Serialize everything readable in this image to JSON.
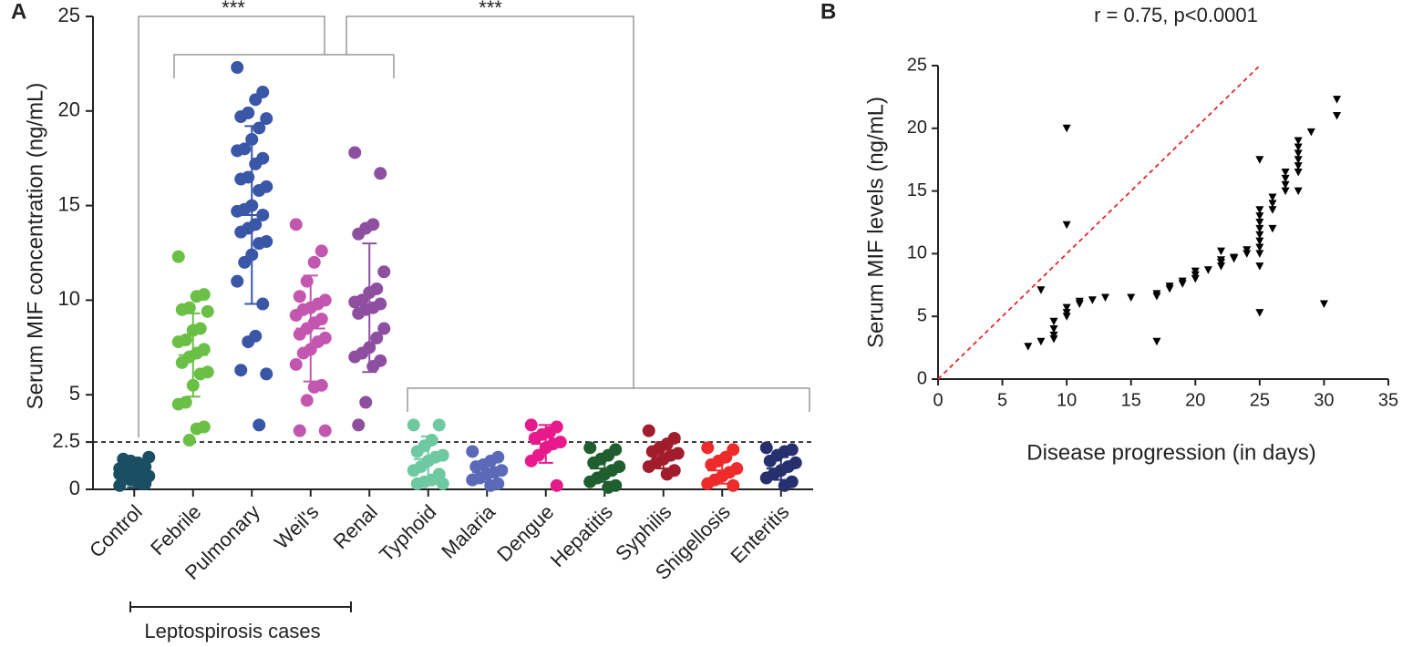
{
  "chart_data": [
    {
      "type": "strip",
      "panel": "A",
      "ylabel": "Serum MIF concentration (ng/mL)",
      "categories": [
        "Control",
        "Febrile",
        "Pulmonary",
        "Weil's",
        "Renal",
        "Typhoid",
        "Malaria",
        "Dengue",
        "Hepatitis",
        "Syphilis",
        "Shigellosis",
        "Enteritis"
      ],
      "colors": [
        "#1a4f63",
        "#6abf45",
        "#3a57a7",
        "#c357b0",
        "#8e4fa0",
        "#6fc9a0",
        "#5a6ab8",
        "#e8198b",
        "#1f5e2e",
        "#a11d2b",
        "#ee2a2a",
        "#27306e"
      ],
      "values": [
        [
          0.2,
          0.3,
          0.4,
          0.5,
          0.6,
          0.7,
          0.8,
          0.9,
          1.0,
          1.1,
          1.2,
          1.4,
          1.5,
          1.6,
          1.7,
          0.3,
          0.5,
          0.6,
          0.8,
          0.4
        ],
        [
          12.3,
          10.3,
          10.2,
          9.6,
          9.5,
          9.4,
          8.5,
          8.4,
          7.9,
          7.8,
          7.4,
          7.2,
          7.0,
          6.7,
          6.2,
          6.1,
          5.5,
          4.6,
          4.5,
          3.3,
          3.2,
          2.6
        ],
        [
          22.3,
          21,
          20.6,
          19.9,
          19.7,
          19.6,
          19.1,
          18.5,
          18,
          17.9,
          17.5,
          17.2,
          16.5,
          16.4,
          16,
          15.8,
          15,
          14.8,
          14.7,
          14.5,
          14,
          13.8,
          13.6,
          13.1,
          13,
          12.4,
          12,
          11,
          9.8,
          8.1,
          7.8,
          6.3,
          6.1,
          3.4
        ],
        [
          14,
          12.6,
          12,
          11,
          10.2,
          10,
          9.8,
          9.6,
          9.5,
          9.2,
          9,
          8.8,
          8.5,
          8.2,
          8,
          7.8,
          7.4,
          7.2,
          6.6,
          5.5,
          5.4,
          4.7,
          3.1,
          3.1
        ],
        [
          17.8,
          16.7,
          14,
          13.8,
          13.5,
          11.5,
          10.6,
          10.4,
          10,
          9.9,
          9.8,
          9.6,
          9.5,
          9.3,
          8.5,
          8,
          7.5,
          7.2,
          7,
          6.8,
          6.5,
          4.6,
          3.4
        ],
        [
          3.4,
          3.4,
          2.6,
          2.3,
          2.0,
          1.8,
          1.7,
          1.5,
          1.2,
          1.0,
          0.8,
          0.5,
          0.4,
          0.3,
          0.3
        ],
        [
          2.0,
          1.7,
          1.5,
          1.3,
          1.2,
          1.0,
          0.9,
          0.8,
          0.6,
          0.5,
          0.3,
          0.2
        ],
        [
          3.4,
          3.3,
          3.0,
          2.9,
          2.7,
          2.5,
          2.4,
          2.2,
          1.8,
          1.5,
          0.2
        ],
        [
          2.2,
          2.1,
          1.8,
          1.6,
          1.4,
          1.2,
          1.0,
          0.8,
          0.6,
          0.4,
          0.2,
          0.1
        ],
        [
          3.1,
          2.7,
          2.4,
          2.2,
          2.0,
          1.9,
          1.8,
          1.6,
          1.4,
          1.2,
          1.0,
          0.8
        ],
        [
          2.2,
          2.1,
          1.7,
          1.5,
          1.3,
          1.1,
          0.9,
          0.7,
          0.5,
          0.3,
          0.2
        ],
        [
          2.2,
          2.1,
          2.0,
          1.8,
          1.5,
          1.4,
          1.2,
          1.0,
          0.8,
          0.6,
          0.4,
          0.2
        ]
      ],
      "mean": [
        0.5,
        7.1,
        14.5,
        8.5,
        9.6,
        1.6,
        0.9,
        2.4,
        1.1,
        1.8,
        1.0,
        1.1
      ],
      "sd": [
        0.4,
        2.2,
        4.7,
        2.8,
        3.4,
        1.2,
        0.5,
        1.0,
        0.7,
        0.7,
        0.7,
        0.6
      ],
      "ylim": [
        0,
        25
      ],
      "yticks": [
        0,
        2.5,
        5,
        10,
        15,
        20,
        25
      ],
      "threshold": 2.5,
      "annotations": [
        "***",
        "***"
      ],
      "group_label": "Leptospirosis cases"
    },
    {
      "type": "scatter",
      "panel": "B",
      "title": "r = 0.75, p<0.0001",
      "xlabel": "Disease progression (in days)",
      "ylabel": "Serum MIF levels (ng/mL)",
      "color": "#000000",
      "x": [
        7,
        8,
        8,
        9,
        9,
        9,
        9,
        10,
        10,
        10,
        10,
        10,
        11,
        11,
        12,
        13,
        15,
        17,
        17,
        17,
        18,
        18,
        19,
        19,
        20,
        20,
        20,
        21,
        22,
        22,
        22,
        22,
        23,
        23,
        24,
        24,
        25,
        25,
        25,
        25,
        25,
        25,
        25,
        25,
        25,
        25,
        25,
        26,
        26,
        26,
        26,
        27,
        27,
        27,
        27,
        28,
        28,
        28,
        28,
        28,
        28,
        28,
        29,
        30,
        31,
        31
      ],
      "y": [
        2.6,
        3,
        7.1,
        3.2,
        3.5,
        4,
        4.6,
        5,
        5.3,
        5.7,
        12.3,
        20,
        6,
        6.2,
        6.3,
        6.5,
        6.5,
        3,
        6.6,
        6.8,
        7.2,
        7.4,
        7.6,
        7.8,
        8,
        8.3,
        8.6,
        8.7,
        9,
        9.3,
        9.5,
        10.2,
        9.6,
        9.7,
        10,
        10.3,
        5.3,
        9,
        10,
        10.5,
        11,
        11.5,
        12,
        12.5,
        13,
        13.5,
        17.5,
        12,
        13.5,
        14,
        14.5,
        15,
        15.5,
        16,
        16.5,
        15,
        16.5,
        17,
        17.5,
        18,
        18.5,
        19,
        19.7,
        6,
        21,
        22.3
      ],
      "reference_line": {
        "x": [
          0,
          25
        ],
        "y": [
          0,
          25
        ],
        "color": "#e8262a"
      },
      "xlim": [
        0,
        35
      ],
      "xticks": [
        0,
        5,
        10,
        15,
        20,
        25,
        30,
        35
      ],
      "ylim": [
        0,
        25
      ],
      "yticks": [
        0,
        5,
        10,
        15,
        20,
        25
      ]
    }
  ]
}
